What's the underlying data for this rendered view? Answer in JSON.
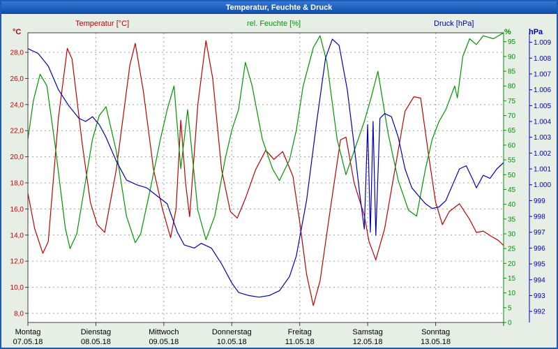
{
  "window": {
    "title": "Temperatur, Feuchte & Druck"
  },
  "chart": {
    "axis_titles": {
      "temperature": "Temperatur [°C]",
      "humidity": "rel. Feuchte [%]",
      "pressure": "Druck [hPa]"
    },
    "units": {
      "temperature": "°C",
      "humidity": "%",
      "pressure": "hPa"
    },
    "colors": {
      "temperature": "#c00000",
      "humidity": "#009600",
      "pressure": "#0000b4",
      "grid": "#9aa89a",
      "frame": "#404040",
      "text": "#000000"
    }
  },
  "chart_data": {
    "type": "line",
    "title": "Temperatur, Feuchte & Druck",
    "x_axis": {
      "range_days": [
        0,
        7
      ],
      "labels": [
        {
          "day": "Montag",
          "date": "07.05.18"
        },
        {
          "day": "Dienstag",
          "date": "08.05.18"
        },
        {
          "day": "Mittwoch",
          "date": "09.05.18"
        },
        {
          "day": "Donnerstag",
          "date": "10.05.18"
        },
        {
          "day": "Freitag",
          "date": "11.05.18"
        },
        {
          "day": "Samstag",
          "date": "12.05.18"
        },
        {
          "day": "Sonntag",
          "date": "13.05.18"
        }
      ]
    },
    "axes": {
      "temperature": {
        "unit": "°C",
        "range": [
          7.3,
          29.5
        ],
        "ticks": [
          [
            28,
            "28,0"
          ],
          [
            26,
            "26,0"
          ],
          [
            24,
            "24,0"
          ],
          [
            22,
            "22,0"
          ],
          [
            20,
            "20,0"
          ],
          [
            18,
            "18,0"
          ],
          [
            16,
            "16,0"
          ],
          [
            14,
            "14,0"
          ],
          [
            12,
            "12,0"
          ],
          [
            10,
            "10,0"
          ],
          [
            8,
            "8,0"
          ]
        ]
      },
      "humidity": {
        "unit": "%",
        "range": [
          0,
          98
        ],
        "ticks": [
          [
            95,
            "95"
          ],
          [
            90,
            "90"
          ],
          [
            85,
            "85"
          ],
          [
            80,
            "80"
          ],
          [
            75,
            "75"
          ],
          [
            70,
            "70"
          ],
          [
            65,
            "65"
          ],
          [
            60,
            "60"
          ],
          [
            55,
            "55"
          ],
          [
            50,
            "50"
          ],
          [
            45,
            "45"
          ],
          [
            40,
            "40"
          ],
          [
            35,
            "35"
          ],
          [
            30,
            "30"
          ],
          [
            25,
            "25"
          ],
          [
            20,
            "20"
          ],
          [
            15,
            "15"
          ],
          [
            10,
            "10"
          ],
          [
            5,
            "5"
          ],
          [
            0,
            "0"
          ]
        ]
      },
      "pressure": {
        "unit": "hPa",
        "range": [
          991.3,
          1009.6
        ],
        "ticks": [
          [
            1009,
            "1.009"
          ],
          [
            1008,
            "1.008"
          ],
          [
            1007,
            "1.007"
          ],
          [
            1006,
            "1.006"
          ],
          [
            1005,
            "1.005"
          ],
          [
            1004,
            "1.004"
          ],
          [
            1003,
            "1.003"
          ],
          [
            1002,
            "1.002"
          ],
          [
            1001,
            "1.001"
          ],
          [
            1000,
            "1.000"
          ],
          [
            999,
            "999"
          ],
          [
            998,
            "998"
          ],
          [
            997,
            "997"
          ],
          [
            996,
            "996"
          ],
          [
            995,
            "995"
          ],
          [
            994,
            "994"
          ],
          [
            993,
            "993"
          ],
          [
            992,
            "992"
          ]
        ]
      }
    },
    "series": [
      {
        "name": "Temperatur [°C]",
        "axis": "temperature",
        "color": "#c00000",
        "points": [
          [
            0,
            17.2
          ],
          [
            0.1,
            14.5
          ],
          [
            0.22,
            12.6
          ],
          [
            0.3,
            13.5
          ],
          [
            0.45,
            23.0
          ],
          [
            0.58,
            28.3
          ],
          [
            0.65,
            27.5
          ],
          [
            0.8,
            21.0
          ],
          [
            0.92,
            16.5
          ],
          [
            1.02,
            14.8
          ],
          [
            1.13,
            14.2
          ],
          [
            1.3,
            19.0
          ],
          [
            1.5,
            27.0
          ],
          [
            1.58,
            28.7
          ],
          [
            1.7,
            25.0
          ],
          [
            1.85,
            19.0
          ],
          [
            1.98,
            16.0
          ],
          [
            2.1,
            13.8
          ],
          [
            2.18,
            16.0
          ],
          [
            2.25,
            22.8
          ],
          [
            2.32,
            18.0
          ],
          [
            2.38,
            15.4
          ],
          [
            2.5,
            24.0
          ],
          [
            2.62,
            28.9
          ],
          [
            2.72,
            26.0
          ],
          [
            2.85,
            19.0
          ],
          [
            2.98,
            15.8
          ],
          [
            3.08,
            15.3
          ],
          [
            3.2,
            16.8
          ],
          [
            3.35,
            19.0
          ],
          [
            3.5,
            20.5
          ],
          [
            3.62,
            19.8
          ],
          [
            3.75,
            20.4
          ],
          [
            3.9,
            18.5
          ],
          [
            4.0,
            15.0
          ],
          [
            4.1,
            11.0
          ],
          [
            4.2,
            8.6
          ],
          [
            4.3,
            10.5
          ],
          [
            4.45,
            16.0
          ],
          [
            4.6,
            21.3
          ],
          [
            4.68,
            21.5
          ],
          [
            4.8,
            18.0
          ],
          [
            4.95,
            15.5
          ],
          [
            5.02,
            13.5
          ],
          [
            5.12,
            12.1
          ],
          [
            5.25,
            14.5
          ],
          [
            5.4,
            19.0
          ],
          [
            5.55,
            23.5
          ],
          [
            5.68,
            24.6
          ],
          [
            5.78,
            24.5
          ],
          [
            5.9,
            20.0
          ],
          [
            6.0,
            16.5
          ],
          [
            6.1,
            14.8
          ],
          [
            6.2,
            15.8
          ],
          [
            6.35,
            16.4
          ],
          [
            6.5,
            15.2
          ],
          [
            6.6,
            14.2
          ],
          [
            6.7,
            14.3
          ],
          [
            6.82,
            13.9
          ],
          [
            6.92,
            13.6
          ],
          [
            7,
            13.2
          ]
        ]
      },
      {
        "name": "rel. Feuchte [%]",
        "axis": "humidity",
        "color": "#009600",
        "points": [
          [
            0,
            62
          ],
          [
            0.08,
            75
          ],
          [
            0.18,
            84
          ],
          [
            0.28,
            80
          ],
          [
            0.4,
            60
          ],
          [
            0.55,
            32
          ],
          [
            0.62,
            25
          ],
          [
            0.72,
            30
          ],
          [
            0.85,
            48
          ],
          [
            0.95,
            62
          ],
          [
            1.05,
            70
          ],
          [
            1.15,
            73
          ],
          [
            1.3,
            58
          ],
          [
            1.45,
            36
          ],
          [
            1.58,
            27
          ],
          [
            1.66,
            30
          ],
          [
            1.8,
            45
          ],
          [
            1.95,
            62
          ],
          [
            2.05,
            72
          ],
          [
            2.15,
            80
          ],
          [
            2.25,
            52
          ],
          [
            2.35,
            72
          ],
          [
            2.5,
            38
          ],
          [
            2.62,
            28
          ],
          [
            2.75,
            36
          ],
          [
            2.9,
            55
          ],
          [
            3.0,
            65
          ],
          [
            3.1,
            72
          ],
          [
            3.2,
            88
          ],
          [
            3.3,
            80
          ],
          [
            3.45,
            62
          ],
          [
            3.6,
            52
          ],
          [
            3.7,
            48
          ],
          [
            3.85,
            55
          ],
          [
            3.95,
            65
          ],
          [
            4.05,
            80
          ],
          [
            4.2,
            93
          ],
          [
            4.3,
            97
          ],
          [
            4.4,
            88
          ],
          [
            4.55,
            62
          ],
          [
            4.68,
            50
          ],
          [
            4.8,
            58
          ],
          [
            4.95,
            68
          ],
          [
            5.05,
            76
          ],
          [
            5.15,
            85
          ],
          [
            5.3,
            64
          ],
          [
            5.45,
            48
          ],
          [
            5.6,
            38
          ],
          [
            5.72,
            36
          ],
          [
            5.85,
            52
          ],
          [
            5.95,
            62
          ],
          [
            6.05,
            68
          ],
          [
            6.15,
            72
          ],
          [
            6.28,
            80
          ],
          [
            6.32,
            76
          ],
          [
            6.4,
            90
          ],
          [
            6.5,
            96
          ],
          [
            6.6,
            94
          ],
          [
            6.7,
            97
          ],
          [
            6.85,
            96
          ],
          [
            7,
            98
          ]
        ]
      },
      {
        "name": "Druck [hPa]",
        "axis": "pressure",
        "color": "#0000b4",
        "points": [
          [
            0,
            1008.6
          ],
          [
            0.15,
            1008.3
          ],
          [
            0.3,
            1007.5
          ],
          [
            0.45,
            1006.0
          ],
          [
            0.6,
            1005.0
          ],
          [
            0.75,
            1004.2
          ],
          [
            0.85,
            1004.0
          ],
          [
            0.95,
            1004.3
          ],
          [
            1.05,
            1003.8
          ],
          [
            1.15,
            1003.0
          ],
          [
            1.3,
            1001.5
          ],
          [
            1.45,
            1000.3
          ],
          [
            1.6,
            1000.0
          ],
          [
            1.75,
            999.8
          ],
          [
            1.9,
            999.3
          ],
          [
            2.05,
            998.8
          ],
          [
            2.2,
            997.0
          ],
          [
            2.3,
            996.2
          ],
          [
            2.45,
            996.0
          ],
          [
            2.55,
            996.3
          ],
          [
            2.7,
            996.0
          ],
          [
            2.85,
            995.0
          ],
          [
            3.0,
            993.8
          ],
          [
            3.1,
            993.2
          ],
          [
            3.25,
            993.0
          ],
          [
            3.4,
            992.9
          ],
          [
            3.55,
            993.0
          ],
          [
            3.7,
            993.3
          ],
          [
            3.85,
            994.2
          ],
          [
            3.95,
            995.5
          ],
          [
            4.1,
            999.0
          ],
          [
            4.25,
            1004.0
          ],
          [
            4.38,
            1008.0
          ],
          [
            4.48,
            1009.2
          ],
          [
            4.58,
            1008.8
          ],
          [
            4.7,
            1006.0
          ],
          [
            4.8,
            1002.5
          ],
          [
            4.88,
            999.5
          ],
          [
            4.95,
            997.2
          ],
          [
            5.0,
            1003.8
          ],
          [
            5.04,
            997.0
          ],
          [
            5.08,
            1004.0
          ],
          [
            5.12,
            996.8
          ],
          [
            5.18,
            1004.2
          ],
          [
            5.25,
            1004.5
          ],
          [
            5.35,
            1004.3
          ],
          [
            5.45,
            1003.0
          ],
          [
            5.55,
            1001.0
          ],
          [
            5.65,
            999.8
          ],
          [
            5.75,
            999.3
          ],
          [
            5.85,
            998.8
          ],
          [
            5.95,
            998.5
          ],
          [
            6.05,
            998.6
          ],
          [
            6.15,
            999.0
          ],
          [
            6.25,
            1000.0
          ],
          [
            6.35,
            1001.0
          ],
          [
            6.45,
            1001.2
          ],
          [
            6.55,
            1000.3
          ],
          [
            6.6,
            999.8
          ],
          [
            6.7,
            1000.6
          ],
          [
            6.8,
            1000.4
          ],
          [
            6.9,
            1001.0
          ],
          [
            7,
            1001.4
          ]
        ]
      }
    ]
  }
}
